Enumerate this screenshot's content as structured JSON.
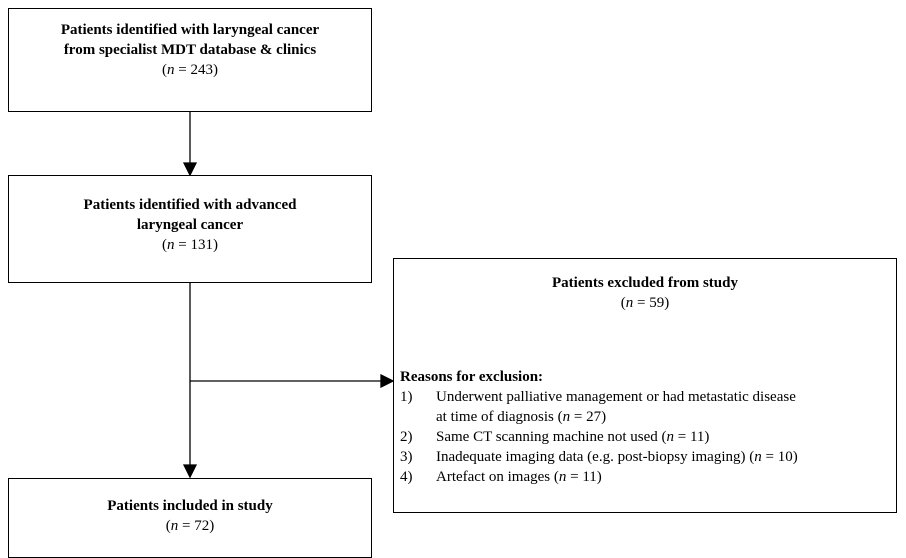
{
  "nodes": [
    {
      "title": [
        "Patients identified with laryngeal cancer",
        "from specialist MDT database & clinics"
      ],
      "count": [
        "(",
        "n",
        " = 243)"
      ]
    },
    {
      "title": [
        "Patients identified with advanced",
        "laryngeal cancer"
      ],
      "count": [
        "(",
        "n",
        " = 131)"
      ]
    },
    {
      "title": [
        "Patients included in study"
      ],
      "count": [
        "(",
        "n",
        " = 72)"
      ]
    }
  ],
  "exclusion": {
    "title": [
      "Patients excluded from study"
    ],
    "count": [
      "(",
      "n",
      " = 59)"
    ],
    "reasons_heading": "Reasons for exclusion:",
    "reasons": [
      {
        "number": "1)",
        "lines": [
          [
            "Underwent palliative management or had metastatic disease"
          ],
          [
            "at time of diagnosis (",
            "n",
            " = 27)"
          ]
        ]
      },
      {
        "number": "2)",
        "lines": [
          [
            "Same CT scanning machine not used (",
            "n",
            " = 11)"
          ]
        ]
      },
      {
        "number": "3)",
        "lines": [
          [
            "Inadequate imaging data (e.g. post-biopsy imaging) (",
            "n",
            " = 10)"
          ]
        ]
      },
      {
        "number": "4)",
        "lines": [
          [
            "Artefact on images (",
            "n",
            " = 11)"
          ]
        ]
      }
    ]
  }
}
